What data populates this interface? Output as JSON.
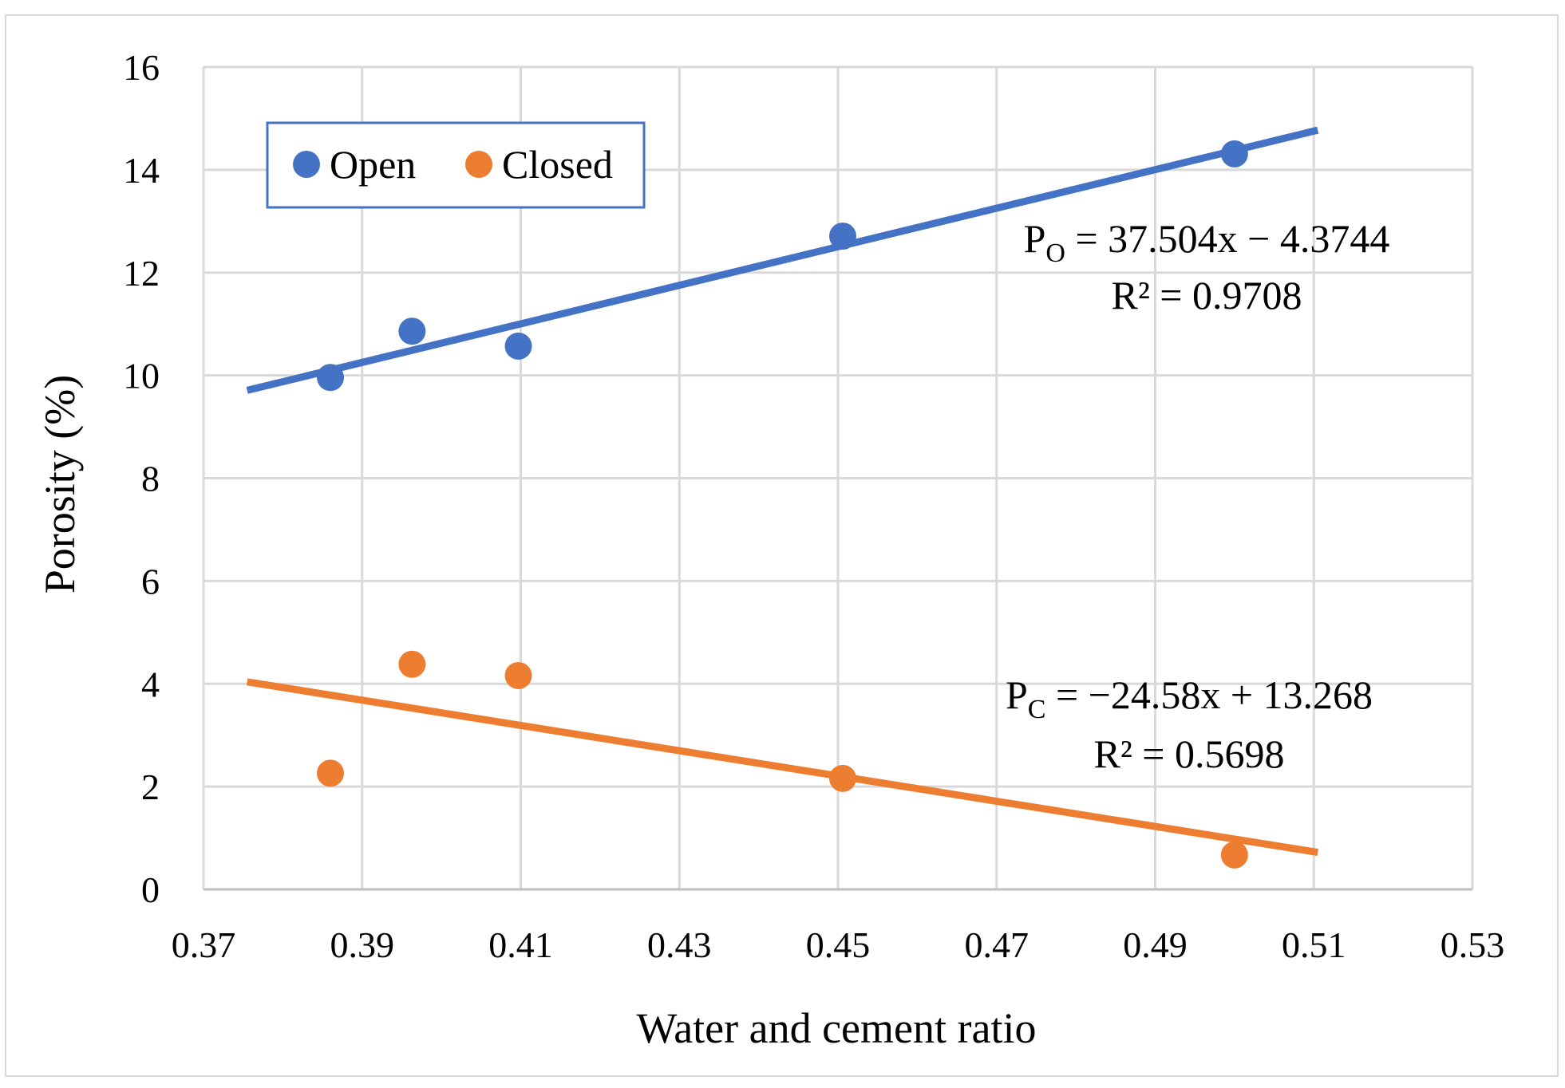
{
  "chart_data": {
    "type": "scatter",
    "title": "",
    "xlabel": "Water and cement ratio",
    "ylabel": "Porosity (%)",
    "xlim": [
      0.37,
      0.53
    ],
    "ylim": [
      0,
      16
    ],
    "xticks": [
      0.37,
      0.39,
      0.41,
      0.43,
      0.45,
      0.47,
      0.49,
      0.51,
      0.53
    ],
    "xtick_labels": [
      "0.37",
      "0.39",
      "0.41",
      "0.43",
      "0.45",
      "0.47",
      "0.49",
      "0.51",
      "0.53"
    ],
    "yticks": [
      0,
      2,
      4,
      6,
      8,
      10,
      12,
      14,
      16
    ],
    "ytick_labels": [
      "0",
      "2",
      "4",
      "6",
      "8",
      "10",
      "12",
      "14",
      "16"
    ],
    "grid": true,
    "legend_position": "top-left",
    "series": [
      {
        "name": "Open",
        "color": "#4472c4",
        "x": [
          0.386,
          0.3963,
          0.4097,
          0.4506,
          0.5
        ],
        "y": [
          9.96,
          10.86,
          10.57,
          12.71,
          14.31
        ],
        "trendline": {
          "slope": 37.504,
          "intercept": -4.3744,
          "x_range": [
            0.3755,
            0.5105
          ],
          "label_main": "P",
          "label_sub": "O",
          "label_rest": " = 37.504x − 4.3744",
          "r2_label": "R² = 0.9708"
        }
      },
      {
        "name": "Closed",
        "color": "#ed7d31",
        "x": [
          0.386,
          0.3963,
          0.4097,
          0.4506,
          0.5
        ],
        "y": [
          2.26,
          4.38,
          4.16,
          2.16,
          0.67
        ],
        "trendline": {
          "slope": -24.58,
          "intercept": 13.268,
          "x_range": [
            0.3755,
            0.5105
          ],
          "label_main": "P",
          "label_sub": "C",
          "label_rest": " = −24.58x + 13.268",
          "r2_label": "R² = 0.5698"
        }
      }
    ]
  }
}
